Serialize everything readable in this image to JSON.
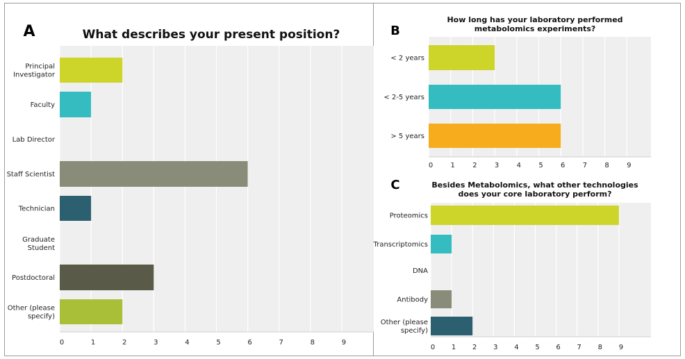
{
  "chart_data": [
    {
      "panel": "A",
      "type": "bar",
      "orientation": "horizontal",
      "title": "What describes your present position?",
      "categories": [
        "Principal Investigator",
        "Faculty",
        "Lab Director",
        "Staff Scientist",
        "Technician",
        "Graduate Student",
        "Postdoctoral",
        "Other (please specify)"
      ],
      "values": [
        2,
        1,
        0,
        6,
        1,
        0,
        3,
        2
      ],
      "colors": [
        "#cdd42a",
        "#35bcc1",
        "#cccccc",
        "#8a8c7a",
        "#2c5f6f",
        "#cccccc",
        "#5a5a48",
        "#a9bf37"
      ],
      "xticks": [
        0,
        1,
        2,
        3,
        4,
        5,
        6,
        7,
        8,
        9
      ],
      "xlim": [
        0,
        10
      ],
      "grid": true
    },
    {
      "panel": "B",
      "type": "bar",
      "orientation": "horizontal",
      "title": "How long has your laboratory performed metabolomics experiments?",
      "categories": [
        "< 2 years",
        "< 2-5 years",
        "> 5 years"
      ],
      "values": [
        3,
        6,
        6
      ],
      "colors": [
        "#cdd42a",
        "#35bcc1",
        "#f6ac1c"
      ],
      "xticks": [
        0,
        1,
        2,
        3,
        4,
        5,
        6,
        7,
        8,
        9
      ],
      "xlim": [
        0,
        10
      ],
      "grid": true
    },
    {
      "panel": "C",
      "type": "bar",
      "orientation": "horizontal",
      "title": "Besides Metabolomics, what other technologies does your core laboratory perform?",
      "categories": [
        "Proteomics",
        "Transcriptomics",
        "DNA",
        "Antibody",
        "Other (please specify)"
      ],
      "values": [
        9,
        1,
        0,
        1,
        2
      ],
      "colors": [
        "#cdd42a",
        "#35bcc1",
        "#cccccc",
        "#8a8c7a",
        "#2c5f6f"
      ],
      "xticks": [
        0,
        1,
        2,
        3,
        4,
        5,
        6,
        7,
        8,
        9
      ],
      "xlim": [
        0,
        10
      ],
      "grid": true
    }
  ]
}
